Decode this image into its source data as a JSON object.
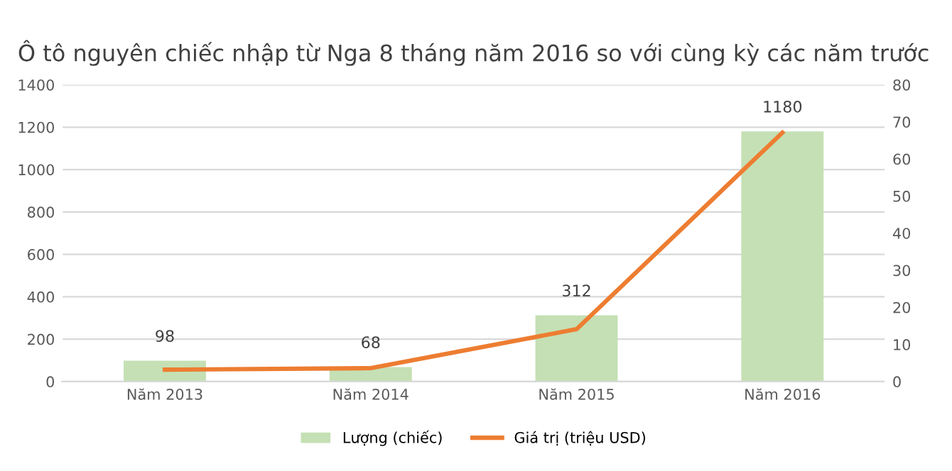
{
  "chart_data": {
    "type": "bar",
    "title": "Ô tô nguyên chiếc nhập từ Nga 8 tháng năm 2016 so với cùng kỳ các năm trước",
    "categories": [
      "Năm 2013",
      "Năm 2014",
      "Năm 2015",
      "Năm 2016"
    ],
    "series": [
      {
        "name": "Lượng (chiếc)",
        "color": "#c5e0b4",
        "values": [
          98,
          68,
          312,
          1180
        ],
        "value_labels": [
          "98",
          "68",
          "312",
          "1180"
        ]
      },
      {
        "name": "Giá trị (triệu USD)",
        "type": "line",
        "axis": "y2",
        "color": "#ed7d31",
        "values": [
          3.2,
          3.6,
          14.1,
          67.1
        ]
      }
    ],
    "ylim": [
      0,
      1400
    ],
    "yticks": [
      0,
      200,
      400,
      600,
      800,
      1000,
      1200,
      1400
    ],
    "y2lim": [
      0,
      80
    ],
    "y2ticks": [
      0,
      10,
      20,
      30,
      40,
      50,
      60,
      70,
      80
    ],
    "grid": "y",
    "legend": "bottom"
  }
}
